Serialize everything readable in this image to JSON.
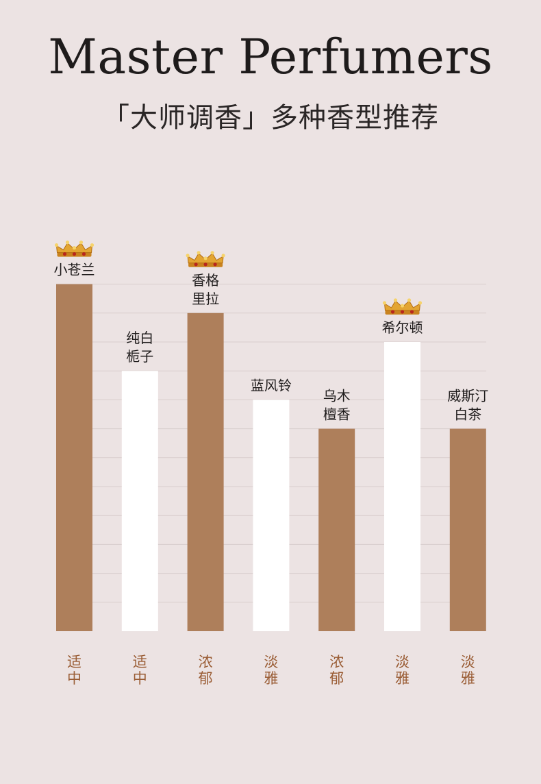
{
  "header": {
    "title": "Master Perfumers",
    "subtitle": "「大师调香」多种香型推荐"
  },
  "colors": {
    "background": "#ece3e3",
    "bar_brown": "#ae7f5b",
    "bar_white": "#ffffff",
    "grid": "#d8cdcc",
    "category_text": "#9a5d35",
    "crown": "#e3a532"
  },
  "chart_data": {
    "type": "bar",
    "title": "",
    "xlabel": "",
    "ylabel": "",
    "ylim": [
      0,
      12
    ],
    "grid": true,
    "bars": [
      {
        "name": [
          "小苍兰"
        ],
        "category": [
          "适",
          "中"
        ],
        "value": 12,
        "color": "brown",
        "crown": true,
        "crown-icon": "crown-icon"
      },
      {
        "name": [
          "纯白",
          "栀子"
        ],
        "category": [
          "适",
          "中"
        ],
        "value": 9,
        "color": "white",
        "crown": false
      },
      {
        "name": [
          "香格",
          "里拉"
        ],
        "category": [
          "浓",
          "郁"
        ],
        "value": 11,
        "color": "brown",
        "crown": true,
        "crown-icon": "crown-icon"
      },
      {
        "name": [
          "蓝风铃"
        ],
        "category": [
          "淡",
          "雅"
        ],
        "value": 8,
        "color": "white",
        "crown": false
      },
      {
        "name": [
          "乌木",
          "檀香"
        ],
        "category": [
          "浓",
          "郁"
        ],
        "value": 7,
        "color": "brown",
        "crown": false
      },
      {
        "name": [
          "希尔顿"
        ],
        "category": [
          "淡",
          "雅"
        ],
        "value": 10,
        "color": "white",
        "crown": true,
        "crown-icon": "crown-icon"
      },
      {
        "name": [
          "威斯汀",
          "白茶"
        ],
        "category": [
          "淡",
          "雅"
        ],
        "value": 7,
        "color": "brown",
        "crown": false
      }
    ]
  }
}
